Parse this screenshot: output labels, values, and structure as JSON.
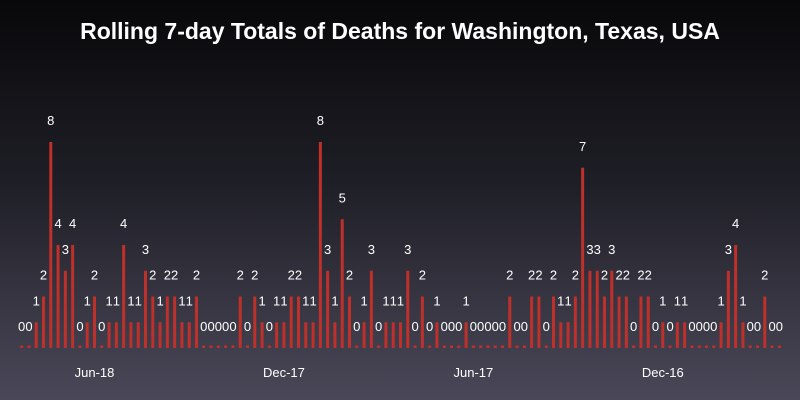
{
  "chart_data": {
    "type": "bar",
    "title": "Rolling 7-day Totals of Deaths for Washington, Texas, USA",
    "xlabel": "",
    "ylabel": "",
    "ylim": [
      0,
      8
    ],
    "grid": false,
    "legend": "none",
    "bar_color": "#c0302a",
    "x_order": "newest-to-oldest",
    "x_tick_labels": [
      {
        "label": "Jun-18",
        "index": 10
      },
      {
        "label": "Dec-17",
        "index": 36
      },
      {
        "label": "Jun-17",
        "index": 62
      },
      {
        "label": "Dec-16",
        "index": 88
      }
    ],
    "values": [
      0,
      0,
      1,
      2,
      8,
      4,
      3,
      4,
      0,
      1,
      2,
      0,
      1,
      1,
      4,
      1,
      1,
      3,
      2,
      1,
      2,
      2,
      1,
      1,
      2,
      0,
      0,
      0,
      0,
      0,
      2,
      0,
      2,
      1,
      0,
      1,
      1,
      2,
      2,
      1,
      1,
      8,
      3,
      1,
      5,
      2,
      0,
      1,
      3,
      0,
      1,
      1,
      1,
      3,
      0,
      2,
      0,
      1,
      0,
      0,
      0,
      1,
      0,
      0,
      0,
      0,
      0,
      2,
      0,
      0,
      2,
      2,
      0,
      2,
      1,
      1,
      2,
      7,
      3,
      3,
      2,
      3,
      2,
      2,
      0,
      2,
      2,
      0,
      1,
      0,
      1,
      1,
      0,
      0,
      0,
      0,
      1,
      3,
      4,
      1,
      0,
      0,
      2,
      0,
      0
    ]
  }
}
